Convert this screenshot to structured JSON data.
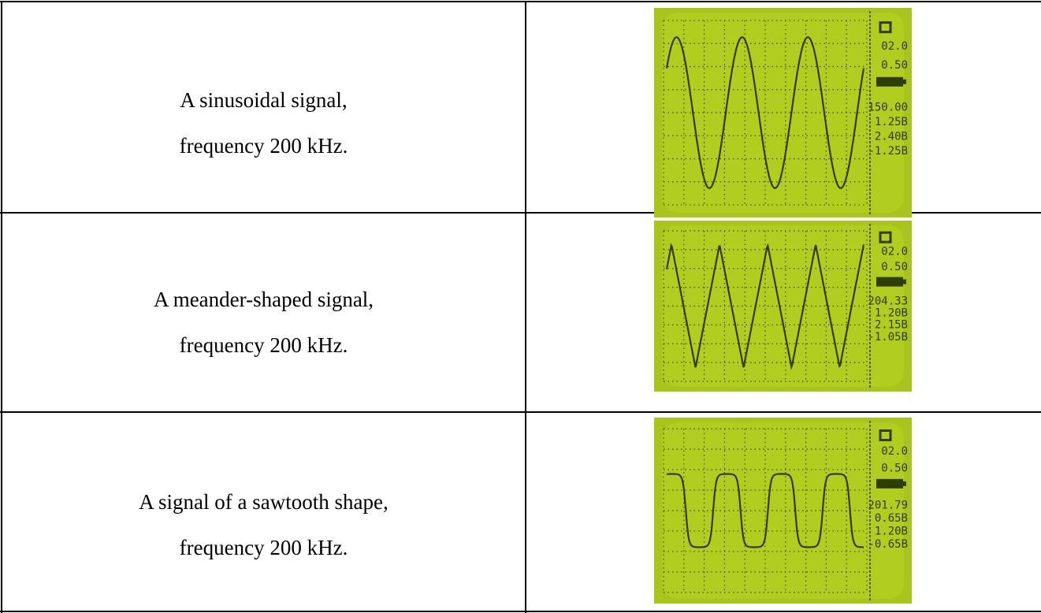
{
  "table": {
    "rows": [
      {
        "description": [
          "A sinusoidal signal,",
          "frequency 200 kHz."
        ],
        "screen": {
          "readouts": [
            "02.0",
            "0.50",
            "150.00",
            "1.25В",
            "2.40В",
            "-1.25В"
          ]
        }
      },
      {
        "description": [
          "A meander-shaped signal,",
          "frequency 200 kHz."
        ],
        "screen": {
          "readouts": [
            "02.0",
            "0.50",
            "204.33",
            "1.20В",
            "2.15В",
            "-1.05В"
          ]
        }
      },
      {
        "description": [
          "A signal of a sawtooth shape,",
          "frequency 200 kHz."
        ],
        "screen": {
          "readouts": [
            "02.0",
            "0.50",
            "201.79",
            "0.65В",
            "1.20В",
            "-0.65В"
          ]
        }
      }
    ]
  }
}
